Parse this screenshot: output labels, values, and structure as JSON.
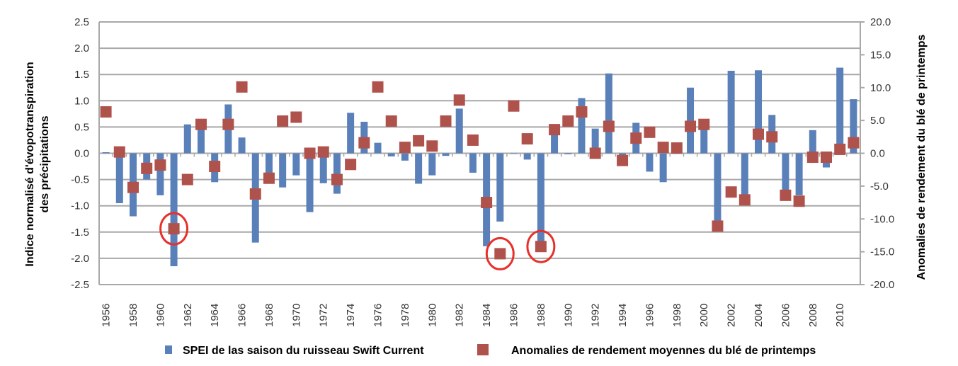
{
  "chart_data": {
    "type": "bar+scatter",
    "categories": [
      "1956",
      "1957",
      "1958",
      "1959",
      "1960",
      "1961",
      "1962",
      "1963",
      "1964",
      "1965",
      "1966",
      "1967",
      "1968",
      "1969",
      "1970",
      "1971",
      "1972",
      "1973",
      "1974",
      "1975",
      "1976",
      "1977",
      "1978",
      "1979",
      "1980",
      "1981",
      "1982",
      "1983",
      "1984",
      "1985",
      "1986",
      "1987",
      "1988",
      "1989",
      "1990",
      "1991",
      "1992",
      "1993",
      "1994",
      "1995",
      "1996",
      "1997",
      "1998",
      "1999",
      "2000",
      "2001",
      "2002",
      "2003",
      "2004",
      "2005",
      "2006",
      "2007",
      "2008",
      "2009",
      "2010",
      "2011"
    ],
    "x_tick_labels": [
      "1956",
      "1958",
      "1960",
      "1962",
      "1964",
      "1966",
      "1968",
      "1970",
      "1972",
      "1974",
      "1976",
      "1978",
      "1980",
      "1982",
      "1984",
      "1986",
      "1988",
      "1990",
      "1992",
      "1994",
      "1996",
      "1998",
      "2000",
      "2002",
      "2004",
      "2006",
      "2008",
      "2010"
    ],
    "series": [
      {
        "name": "SPEI de las saison du ruisseau Swift Current",
        "type": "bar",
        "axis": "left",
        "color": "#5a80ba",
        "values": [
          0.02,
          -0.95,
          -1.2,
          -0.5,
          -0.8,
          -2.15,
          0.55,
          0.5,
          -0.55,
          0.93,
          0.3,
          -1.7,
          -0.5,
          -0.65,
          -0.42,
          -1.12,
          -0.57,
          -0.77,
          0.77,
          0.6,
          0.2,
          -0.06,
          -0.14,
          -0.58,
          -0.42,
          -0.05,
          0.85,
          -0.37,
          -1.77,
          -1.3,
          0.0,
          -0.12,
          -1.68,
          0.45,
          -0.02,
          1.05,
          0.47,
          1.52,
          -0.06,
          0.58,
          -0.35,
          -0.55,
          0.0,
          1.25,
          0.55,
          -1.37,
          1.57,
          -0.9,
          1.58,
          0.73,
          -0.73,
          -0.8,
          0.44,
          -0.27,
          1.63,
          1.03
        ]
      },
      {
        "name": "Anomalies de rendement moyennes du blé de printemps",
        "type": "scatter",
        "axis": "right",
        "color": "#b0524c",
        "values": [
          6.3,
          0.2,
          -5.2,
          -2.3,
          -1.8,
          -11.5,
          -4.0,
          4.4,
          -2.0,
          4.4,
          10.1,
          -6.2,
          -3.8,
          4.9,
          5.5,
          0.0,
          0.2,
          -4.0,
          -1.7,
          1.6,
          10.1,
          4.9,
          0.9,
          1.9,
          1.1,
          4.9,
          8.1,
          2.0,
          -7.5,
          -15.3,
          7.2,
          2.2,
          -14.2,
          3.6,
          4.9,
          6.3,
          0.0,
          4.1,
          -1.1,
          2.3,
          3.2,
          0.9,
          0.8,
          4.1,
          4.4,
          -11.1,
          -5.9,
          -7.1,
          2.9,
          2.5,
          -6.4,
          -7.3,
          -0.6,
          -0.6,
          0.6,
          1.6
        ]
      }
    ],
    "highlighted_years": [
      "1961",
      "1985",
      "1988"
    ],
    "highlight_color": "#e8302a",
    "ylabel_left": [
      "Indice normalisé d'évopotranspiration",
      "des précipitations"
    ],
    "ylabel_right": "Anomalies de rendement du blé de printemps",
    "ylim_left": [
      -2.5,
      2.5
    ],
    "ylim_right": [
      -20,
      20
    ],
    "yticks_left": [
      "2.5",
      "2.0",
      "1.5",
      "1.0",
      "0.5",
      "0.0",
      "-0.5",
      "-1.0",
      "-1.5",
      "-2.0",
      "-2.5"
    ],
    "yticks_right": [
      "20.0",
      "15.0",
      "10.0",
      "5.0",
      "0.0",
      "-5.0",
      "-10.0",
      "-15.0",
      "-20.0"
    ],
    "grid": true,
    "legend_position": "bottom"
  }
}
